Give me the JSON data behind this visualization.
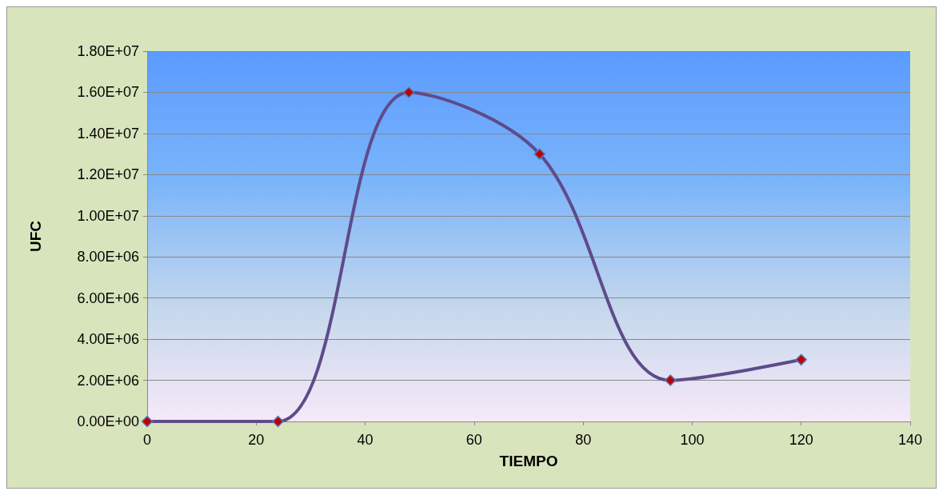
{
  "chart_data": {
    "type": "line",
    "xlabel": "TIEMPO",
    "ylabel": "UFC",
    "x": [
      0,
      24,
      48,
      72,
      96,
      120
    ],
    "series": [
      {
        "color": "#5f4b8b",
        "values": [
          0,
          0,
          16000000,
          13000000,
          2000000,
          3000000
        ]
      }
    ],
    "xlim": [
      0,
      140
    ],
    "xticks": [
      0,
      20,
      40,
      60,
      80,
      100,
      120,
      140
    ],
    "ylim": [
      0,
      18000000
    ],
    "yticks": [
      {
        "value": 0,
        "label": "0.00E+00"
      },
      {
        "value": 2000000,
        "label": "2.00E+06"
      },
      {
        "value": 4000000,
        "label": "4.00E+06"
      },
      {
        "value": 6000000,
        "label": "6.00E+06"
      },
      {
        "value": 8000000,
        "label": "8.00E+06"
      },
      {
        "value": 10000000,
        "label": "1.00E+07"
      },
      {
        "value": 12000000,
        "label": "1.20E+07"
      },
      {
        "value": 14000000,
        "label": "1.40E+07"
      },
      {
        "value": 16000000,
        "label": "1.60E+07"
      },
      {
        "value": 18000000,
        "label": "1.80E+07"
      }
    ],
    "grid": "y",
    "marker": "diamond",
    "line_style": "solid"
  }
}
